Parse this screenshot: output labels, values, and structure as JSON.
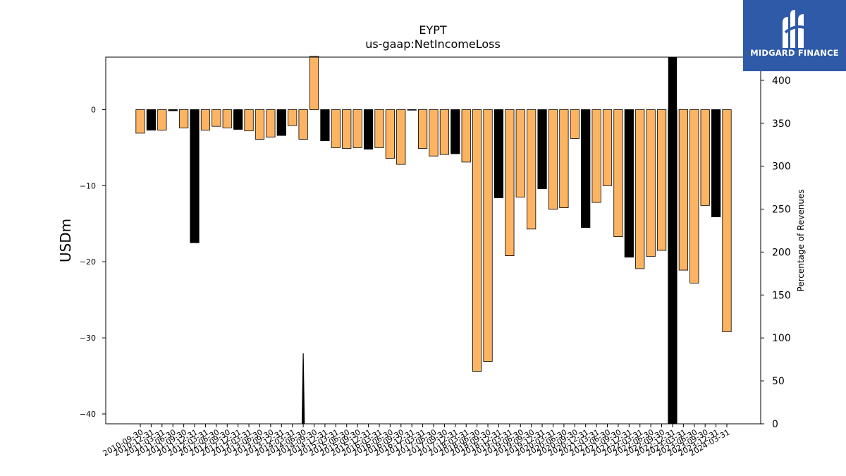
{
  "chart_data": {
    "type": "bar",
    "title": "EYPT",
    "subtitle": "us-gaap:NetIncomeLoss",
    "ylabel": "USDm",
    "y2label": "Percentage of Revenues",
    "ylim": [
      -41.3,
      6.9
    ],
    "y2lim": [
      0,
      427
    ],
    "yticks": [
      0,
      -10,
      -20,
      -30,
      -40
    ],
    "y2ticks": [
      0,
      50,
      100,
      150,
      200,
      250,
      300,
      350,
      400
    ],
    "grid": false,
    "colors": {
      "quarter": "#fdb462",
      "annual": "#000000",
      "edge": "#000000"
    },
    "categories": [
      "2010-09-30",
      "2010-12-31",
      "2011-03-31",
      "2011-06-30",
      "2011-09-30",
      "2011-12-31",
      "2012-03-31",
      "2012-06-30",
      "2012-09-30",
      "2012-12-31",
      "2013-03-31",
      "2013-06-30",
      "2013-09-30",
      "2013-12-31",
      "2014-03-31",
      "2014-06-30",
      "2014-09-30",
      "2014-12-31",
      "2015-03-31",
      "2015-06-30",
      "2015-09-30",
      "2015-12-31",
      "2016-03-31",
      "2016-06-30",
      "2016-09-30",
      "2016-12-31",
      "2017-03-31",
      "2017-06-30",
      "2017-09-30",
      "2017-12-31",
      "2018-03-31",
      "2018-06-30",
      "2018-09-30",
      "2018-12-31",
      "2019-03-31",
      "2019-06-30",
      "2019-09-30",
      "2019-12-31",
      "2020-03-31",
      "2020-06-30",
      "2020-09-30",
      "2020-12-31",
      "2021-03-31",
      "2021-06-30",
      "2021-09-30",
      "2021-12-31",
      "2022-03-31",
      "2022-06-30",
      "2022-09-30",
      "2022-12-31",
      "2023-03-31",
      "2023-06-30",
      "2023-09-30",
      "2023-12-31",
      "2024-03-31"
    ],
    "tick_labels": [
      "2010-09-30",
      "2010-12-31",
      "2011-03-31",
      "2011-06-30",
      "2011-09-30",
      "2011-12-31",
      "2012-03-31",
      "2012-06-30",
      "2012-09-30",
      "2012-12-31",
      "2013-03-31",
      "2013-06-30",
      "2013-09-30",
      "2013-12-31",
      "2014-03-31",
      "2014-06-30",
      "2014-09-30",
      "2014-12-31",
      "2015-03-31",
      "2015-06-30",
      "2015-09-30",
      "2015-12-31",
      "2016-03-31",
      "2016-06-30",
      "2016-09-30",
      "2016-12-31",
      "2017-03-31",
      "2017-06-30",
      "2017-09-30",
      "2017-12-31",
      "2018-03-31",
      "2018-06-30",
      "2018-09-30",
      "2018-12-31",
      "2019-03-31",
      "2019-06-30",
      "2019-09-30",
      "2019-12-31",
      "2020-03-31",
      "2020-06-30",
      "2020-09-30",
      "2020-12-31",
      "2021-03-31",
      "2021-06-30",
      "2021-09-30",
      "2021-12-31",
      "2022-03-31",
      "2022-06-30",
      "2022-09-30",
      "2022-12-31",
      "2023-03-31",
      "2023-06-30",
      "2023-09-30",
      "2023-12-31",
      "2024-03-31"
    ],
    "values": [
      -3.1,
      -2.7,
      -2.7,
      -0.15,
      -2.4,
      -17.5,
      -2.7,
      -2.2,
      -2.4,
      -2.6,
      -2.8,
      -3.9,
      -3.6,
      -3.4,
      -2.1,
      -3.9,
      7.0,
      -4.1,
      -5.0,
      -5.1,
      -5.0,
      -5.2,
      -5.0,
      -6.4,
      -7.2,
      -0.05,
      -5.1,
      -6.1,
      -5.9,
      -5.8,
      -6.9,
      -34.4,
      -33.1,
      -11.6,
      -19.2,
      -11.5,
      -15.7,
      -10.4,
      -13.1,
      -12.9,
      -3.8,
      -15.5,
      -12.2,
      -10.0,
      -16.7,
      -19.4,
      -20.9,
      -19.3,
      -18.5,
      -41.3,
      -21.1,
      -22.8,
      -12.6,
      -14.1,
      -29.2
    ],
    "annual": [
      false,
      true,
      false,
      true,
      false,
      true,
      false,
      false,
      false,
      true,
      false,
      false,
      false,
      true,
      false,
      false,
      false,
      true,
      false,
      false,
      false,
      true,
      false,
      false,
      false,
      true,
      false,
      false,
      false,
      true,
      false,
      false,
      false,
      true,
      false,
      false,
      false,
      true,
      false,
      false,
      false,
      true,
      false,
      false,
      false,
      true,
      false,
      false,
      false,
      true,
      false,
      false,
      false,
      true,
      false
    ],
    "pct_revenue_spike": {
      "category": "2014-06-30",
      "value": 82
    },
    "pct_revenue_bar": {
      "category": "2022-12-31",
      "value": 427
    }
  },
  "logo": {
    "text": "MIDGARD FINANCE"
  }
}
